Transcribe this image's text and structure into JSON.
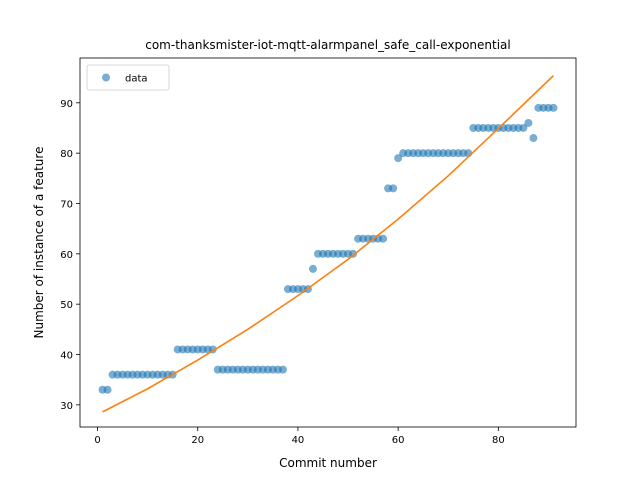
{
  "chart_data": {
    "type": "scatter",
    "title": "com-thanksmister-iot-mqtt-alarmpanel_safe_call-exponential",
    "xlabel": "Commit number",
    "ylabel": "Number of instance of a feature",
    "xlim": [
      -3.5,
      95.5
    ],
    "ylim": [
      25.6,
      98.9
    ],
    "xticks": [
      0,
      20,
      40,
      60,
      80
    ],
    "yticks": [
      30,
      40,
      50,
      60,
      70,
      80,
      90
    ],
    "grid": false,
    "legend": {
      "position": "top-left",
      "entries": [
        "data"
      ]
    },
    "series": [
      {
        "name": "data",
        "kind": "scatter",
        "color": "#1f77b4",
        "x": [
          1,
          2,
          3,
          4,
          5,
          6,
          7,
          8,
          9,
          10,
          11,
          12,
          13,
          14,
          15,
          16,
          17,
          18,
          19,
          20,
          21,
          22,
          23,
          24,
          25,
          26,
          27,
          28,
          29,
          30,
          31,
          32,
          33,
          34,
          35,
          36,
          37,
          38,
          39,
          40,
          41,
          42,
          43,
          44,
          45,
          46,
          47,
          48,
          49,
          50,
          51,
          52,
          53,
          54,
          55,
          56,
          57,
          58,
          59,
          60,
          61,
          62,
          63,
          64,
          65,
          66,
          67,
          68,
          69,
          70,
          71,
          72,
          73,
          74,
          75,
          76,
          77,
          78,
          79,
          80,
          81,
          82,
          83,
          84,
          85,
          86,
          87,
          88,
          89,
          90,
          91
        ],
        "y": [
          33,
          33,
          36,
          36,
          36,
          36,
          36,
          36,
          36,
          36,
          36,
          36,
          36,
          36,
          36,
          41,
          41,
          41,
          41,
          41,
          41,
          41,
          41,
          37,
          37,
          37,
          37,
          37,
          37,
          37,
          37,
          37,
          37,
          37,
          37,
          37,
          37,
          53,
          53,
          53,
          53,
          53,
          57,
          60,
          60,
          60,
          60,
          60,
          60,
          60,
          60,
          63,
          63,
          63,
          63,
          63,
          63,
          73,
          73,
          79,
          80,
          80,
          80,
          80,
          80,
          80,
          80,
          80,
          80,
          80,
          80,
          80,
          80,
          80,
          85,
          85,
          85,
          85,
          85,
          85,
          85,
          85,
          85,
          85,
          85,
          86,
          83,
          89,
          89,
          89,
          89
        ]
      },
      {
        "name": "",
        "kind": "line",
        "color": "#ff7f0e",
        "x": [
          1,
          10,
          20,
          30,
          40,
          50,
          60,
          70,
          80,
          91
        ],
        "y": [
          28.6,
          33.2,
          38.9,
          45.0,
          51.7,
          58.9,
          66.9,
          75.5,
          84.9,
          95.4
        ]
      }
    ]
  }
}
